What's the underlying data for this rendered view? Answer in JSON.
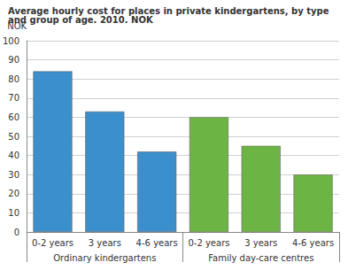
{
  "chart_data": {
    "type": "bar",
    "title": "Average hourly cost for places in private kindergartens, by type and group of age. 2010. NOK",
    "y_label": "NOK",
    "groups": [
      {
        "name": "Ordinary kindergartens",
        "color": "#3a8fcc",
        "categories": [
          "0-2 years",
          "3 years",
          "4-6 years"
        ],
        "values": [
          84,
          63,
          42
        ]
      },
      {
        "name": "Family day-care centres",
        "color": "#6cb545",
        "categories": [
          "0-2 years",
          "3 years",
          "4-6 years"
        ],
        "values": [
          60,
          45,
          30
        ]
      }
    ],
    "ylim": [
      0,
      100
    ],
    "yticks": [
      0,
      10,
      20,
      30,
      40,
      50,
      60,
      70,
      80,
      90,
      100
    ],
    "grid": true
  }
}
